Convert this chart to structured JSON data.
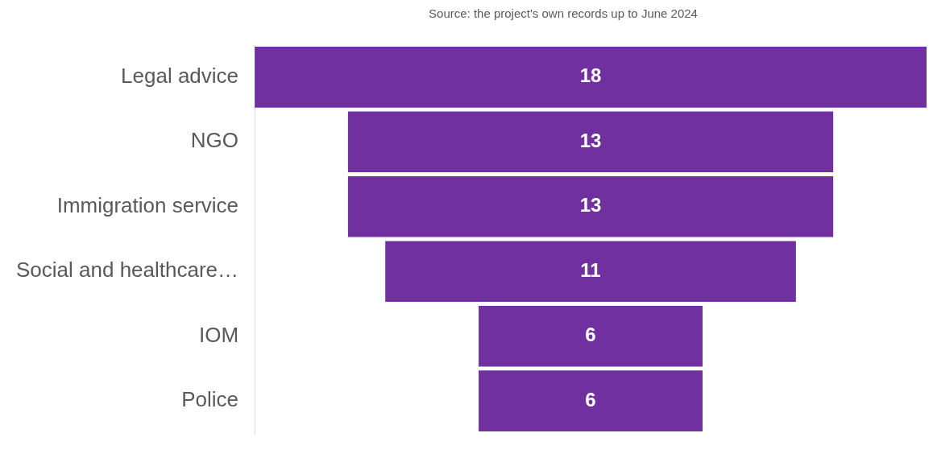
{
  "chart_data": {
    "type": "other",
    "subtitle": "Source: the project's own records up to June 2024",
    "categories": [
      "Legal advice",
      "NGO",
      "Immigration service",
      "Social and healthcare…",
      "IOM",
      "Police"
    ],
    "values": [
      18,
      13,
      13,
      11,
      6,
      6
    ],
    "color": "#7030a0",
    "data_labels": true
  }
}
